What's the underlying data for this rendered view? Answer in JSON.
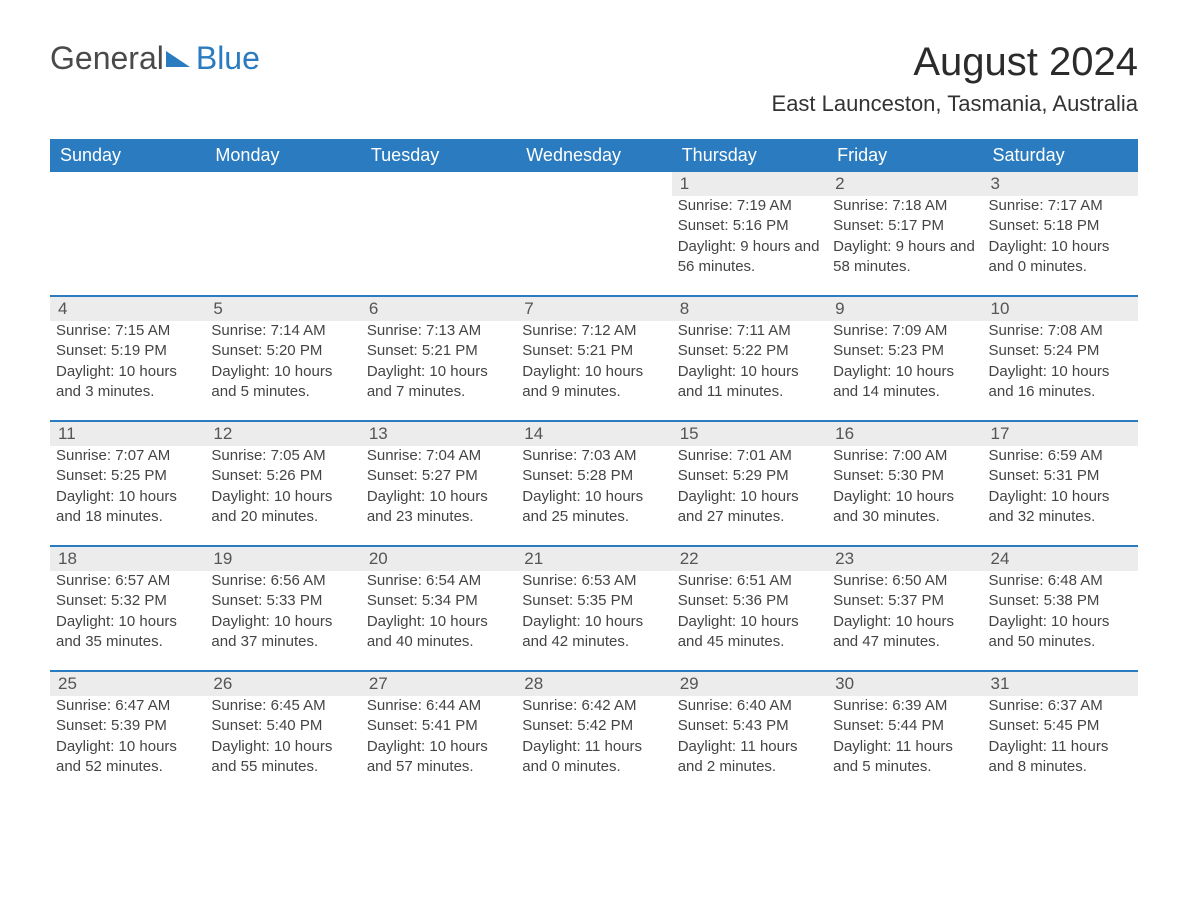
{
  "logo": {
    "part1": "General",
    "part2": "Blue"
  },
  "title": "August 2024",
  "location": "East Launceston, Tasmania, Australia",
  "colors": {
    "header_bg": "#2a7bbf",
    "header_text": "#ffffff",
    "daynum_bg": "#ececec",
    "daynum_border": "#2a7bbf",
    "body_text": "#444444",
    "page_bg": "#ffffff"
  },
  "weekdays": [
    "Sunday",
    "Monday",
    "Tuesday",
    "Wednesday",
    "Thursday",
    "Friday",
    "Saturday"
  ],
  "weeks": [
    [
      null,
      null,
      null,
      null,
      {
        "d": "1",
        "sr": "7:19 AM",
        "ss": "5:16 PM",
        "dl": "9 hours and 56 minutes."
      },
      {
        "d": "2",
        "sr": "7:18 AM",
        "ss": "5:17 PM",
        "dl": "9 hours and 58 minutes."
      },
      {
        "d": "3",
        "sr": "7:17 AM",
        "ss": "5:18 PM",
        "dl": "10 hours and 0 minutes."
      }
    ],
    [
      {
        "d": "4",
        "sr": "7:15 AM",
        "ss": "5:19 PM",
        "dl": "10 hours and 3 minutes."
      },
      {
        "d": "5",
        "sr": "7:14 AM",
        "ss": "5:20 PM",
        "dl": "10 hours and 5 minutes."
      },
      {
        "d": "6",
        "sr": "7:13 AM",
        "ss": "5:21 PM",
        "dl": "10 hours and 7 minutes."
      },
      {
        "d": "7",
        "sr": "7:12 AM",
        "ss": "5:21 PM",
        "dl": "10 hours and 9 minutes."
      },
      {
        "d": "8",
        "sr": "7:11 AM",
        "ss": "5:22 PM",
        "dl": "10 hours and 11 minutes."
      },
      {
        "d": "9",
        "sr": "7:09 AM",
        "ss": "5:23 PM",
        "dl": "10 hours and 14 minutes."
      },
      {
        "d": "10",
        "sr": "7:08 AM",
        "ss": "5:24 PM",
        "dl": "10 hours and 16 minutes."
      }
    ],
    [
      {
        "d": "11",
        "sr": "7:07 AM",
        "ss": "5:25 PM",
        "dl": "10 hours and 18 minutes."
      },
      {
        "d": "12",
        "sr": "7:05 AM",
        "ss": "5:26 PM",
        "dl": "10 hours and 20 minutes."
      },
      {
        "d": "13",
        "sr": "7:04 AM",
        "ss": "5:27 PM",
        "dl": "10 hours and 23 minutes."
      },
      {
        "d": "14",
        "sr": "7:03 AM",
        "ss": "5:28 PM",
        "dl": "10 hours and 25 minutes."
      },
      {
        "d": "15",
        "sr": "7:01 AM",
        "ss": "5:29 PM",
        "dl": "10 hours and 27 minutes."
      },
      {
        "d": "16",
        "sr": "7:00 AM",
        "ss": "5:30 PM",
        "dl": "10 hours and 30 minutes."
      },
      {
        "d": "17",
        "sr": "6:59 AM",
        "ss": "5:31 PM",
        "dl": "10 hours and 32 minutes."
      }
    ],
    [
      {
        "d": "18",
        "sr": "6:57 AM",
        "ss": "5:32 PM",
        "dl": "10 hours and 35 minutes."
      },
      {
        "d": "19",
        "sr": "6:56 AM",
        "ss": "5:33 PM",
        "dl": "10 hours and 37 minutes."
      },
      {
        "d": "20",
        "sr": "6:54 AM",
        "ss": "5:34 PM",
        "dl": "10 hours and 40 minutes."
      },
      {
        "d": "21",
        "sr": "6:53 AM",
        "ss": "5:35 PM",
        "dl": "10 hours and 42 minutes."
      },
      {
        "d": "22",
        "sr": "6:51 AM",
        "ss": "5:36 PM",
        "dl": "10 hours and 45 minutes."
      },
      {
        "d": "23",
        "sr": "6:50 AM",
        "ss": "5:37 PM",
        "dl": "10 hours and 47 minutes."
      },
      {
        "d": "24",
        "sr": "6:48 AM",
        "ss": "5:38 PM",
        "dl": "10 hours and 50 minutes."
      }
    ],
    [
      {
        "d": "25",
        "sr": "6:47 AM",
        "ss": "5:39 PM",
        "dl": "10 hours and 52 minutes."
      },
      {
        "d": "26",
        "sr": "6:45 AM",
        "ss": "5:40 PM",
        "dl": "10 hours and 55 minutes."
      },
      {
        "d": "27",
        "sr": "6:44 AM",
        "ss": "5:41 PM",
        "dl": "10 hours and 57 minutes."
      },
      {
        "d": "28",
        "sr": "6:42 AM",
        "ss": "5:42 PM",
        "dl": "11 hours and 0 minutes."
      },
      {
        "d": "29",
        "sr": "6:40 AM",
        "ss": "5:43 PM",
        "dl": "11 hours and 2 minutes."
      },
      {
        "d": "30",
        "sr": "6:39 AM",
        "ss": "5:44 PM",
        "dl": "11 hours and 5 minutes."
      },
      {
        "d": "31",
        "sr": "6:37 AM",
        "ss": "5:45 PM",
        "dl": "11 hours and 8 minutes."
      }
    ]
  ],
  "labels": {
    "sunrise": "Sunrise:",
    "sunset": "Sunset:",
    "daylight": "Daylight:"
  }
}
